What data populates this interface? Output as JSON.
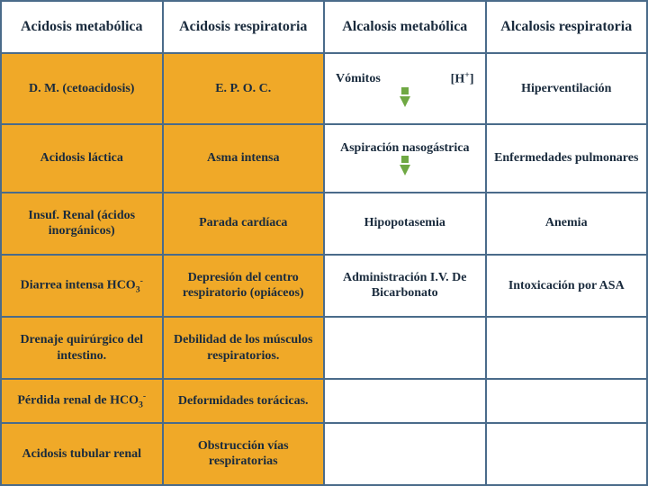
{
  "type": "table",
  "columns_count": 4,
  "rows_count": 8,
  "highlight_color": "#f0a928",
  "border_color": "#4a6b8a",
  "arrow_color": "#6fa843",
  "header_fontsize": 16,
  "cell_fontsize": 14,
  "font_family": "Georgia, serif",
  "headers": [
    "Acidosis metabólica",
    "Acidosis respiratoria",
    "Alcalosis metabólica",
    "Alcalosis respiratoria"
  ],
  "rows": [
    {
      "c0": {
        "text": "D. M. (cetoacidosis)",
        "hi": true
      },
      "c1": {
        "text": "E. P. O. C.",
        "hi": true
      },
      "c2": {
        "left": "Vómitos",
        "right_html": "[H<sup>+</sup>]",
        "arrow": true,
        "hi": false,
        "split": true
      },
      "c3": {
        "text": "Hiperventilación",
        "hi": false
      }
    },
    {
      "c0": {
        "text": "Acidosis láctica",
        "hi": true
      },
      "c1": {
        "text": "Asma intensa",
        "hi": true
      },
      "c2": {
        "text": "Aspiración nasogástrica",
        "arrow": true,
        "hi": false
      },
      "c3": {
        "text": "Enfermedades pulmonares",
        "hi": false
      }
    },
    {
      "c0": {
        "text": "Insuf. Renal (ácidos inorgánicos)",
        "hi": true
      },
      "c1": {
        "text": "Parada cardíaca",
        "hi": true
      },
      "c2": {
        "text": "Hipopotasemia",
        "hi": false
      },
      "c3": {
        "text": "Anemia",
        "hi": false
      }
    },
    {
      "c0": {
        "html": "Diarrea intensa HCO<sub>3</sub><sup>-</sup>",
        "hi": true
      },
      "c1": {
        "text": "Depresión del centro respiratorio (opiáceos)",
        "hi": true
      },
      "c2": {
        "text": "Administración I.V. De Bicarbonato",
        "hi": false
      },
      "c3": {
        "text": "Intoxicación por ASA",
        "hi": false
      }
    },
    {
      "c0": {
        "text": "Drenaje quirúrgico del intestino.",
        "hi": true
      },
      "c1": {
        "text": "Debilidad de los músculos respiratorios.",
        "hi": true
      },
      "c2": {
        "text": "",
        "hi": false
      },
      "c3": {
        "text": "",
        "hi": false
      }
    },
    {
      "c0": {
        "html": "Pérdida renal de HCO<sub>3</sub><sup>-</sup>",
        "hi": true
      },
      "c1": {
        "text": "Deformidades torácicas.",
        "hi": true
      },
      "c2": {
        "text": "",
        "hi": false
      },
      "c3": {
        "text": "",
        "hi": false
      }
    },
    {
      "c0": {
        "text": "Acidosis tubular renal",
        "hi": true
      },
      "c1": {
        "text": "Obstrucción vías respiratorias",
        "hi": true
      },
      "c2": {
        "text": "",
        "hi": false
      },
      "c3": {
        "text": "",
        "hi": false
      }
    }
  ]
}
